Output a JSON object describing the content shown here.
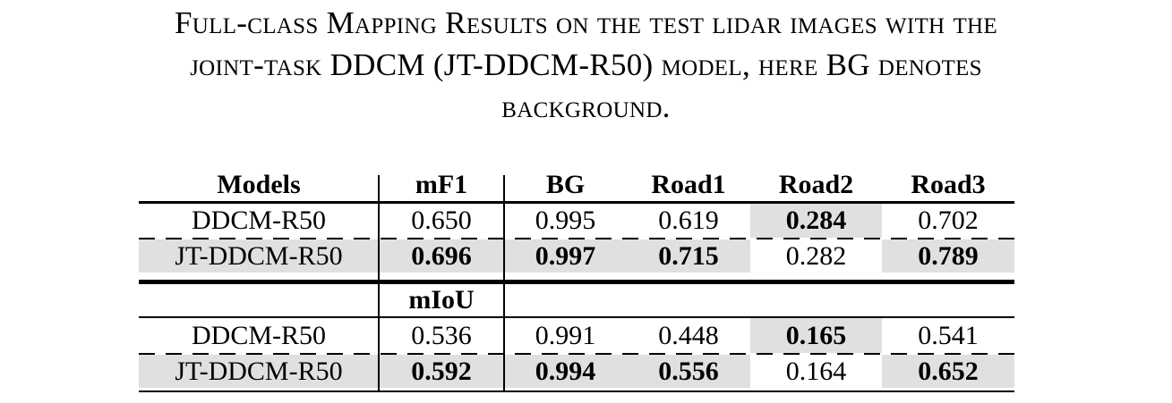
{
  "caption": {
    "lines": [
      "Full-class Mapping Results on the test lidar images with the",
      "joint-task DDCM (JT-DDCM-R50) model, here BG denotes",
      "background."
    ]
  },
  "table": {
    "columns": [
      "Models",
      "mF1",
      "BG",
      "Road1",
      "Road2",
      "Road3"
    ],
    "highlight_color": "#e0e0e0",
    "sections": [
      {
        "metric": "mF1",
        "rows": [
          {
            "model": "DDCM-R50",
            "values": [
              "0.650",
              "0.995",
              "0.619",
              "0.284",
              "0.702"
            ],
            "best": [
              false,
              false,
              false,
              true,
              false
            ]
          },
          {
            "model": "JT-DDCM-R50",
            "values": [
              "0.696",
              "0.997",
              "0.715",
              "0.282",
              "0.789"
            ],
            "best": [
              true,
              true,
              true,
              false,
              true
            ]
          }
        ]
      },
      {
        "metric": "mIoU",
        "rows": [
          {
            "model": "DDCM-R50",
            "values": [
              "0.536",
              "0.991",
              "0.448",
              "0.165",
              "0.541"
            ],
            "best": [
              false,
              false,
              false,
              true,
              false
            ]
          },
          {
            "model": "JT-DDCM-R50",
            "values": [
              "0.592",
              "0.994",
              "0.556",
              "0.164",
              "0.652"
            ],
            "best": [
              true,
              true,
              true,
              false,
              true
            ]
          }
        ]
      }
    ]
  }
}
